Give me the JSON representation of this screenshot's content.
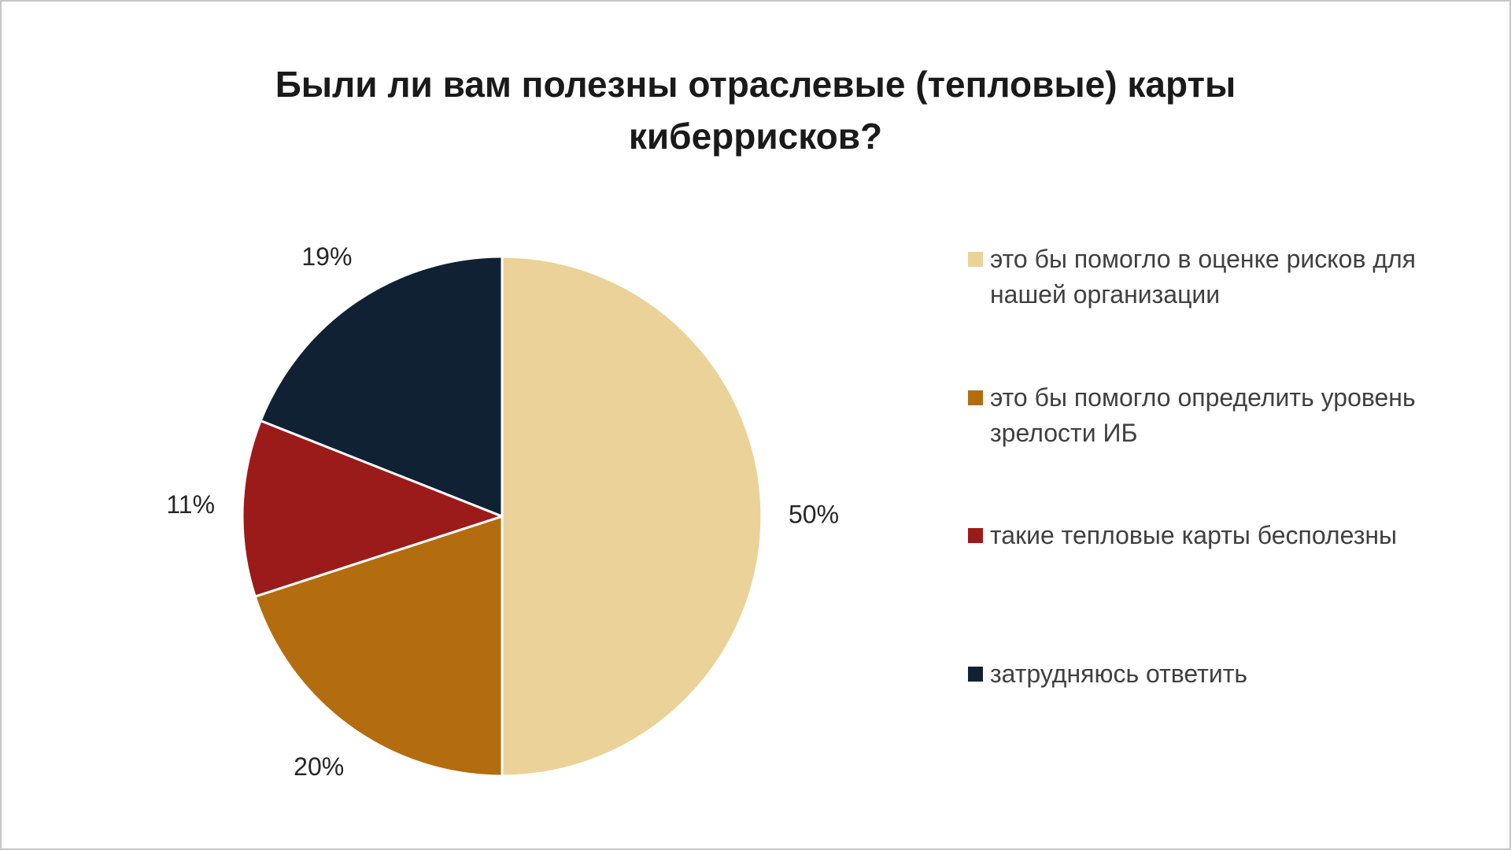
{
  "page": {
    "background": "#ffffff",
    "border_color": "#c6c6c6"
  },
  "chart_data": {
    "type": "pie",
    "title": "Были ли вам полезны отраслевые (тепловые) карты киберрисков?",
    "start_angle_deg": 0,
    "direction": "clockwise",
    "legend_position": "right",
    "grid": false,
    "title_color": "#1a1a1a",
    "label_color": "#262626",
    "legend_text_color": "#404040",
    "slices": [
      {
        "label": "это бы помогло в оценке рисков для нашей организации",
        "value": 50,
        "percent_label": "50%",
        "color": "#ebd299"
      },
      {
        "label": "это бы помогло определить уровень зрелости ИБ",
        "value": 20,
        "percent_label": "20%",
        "color": "#b36d0f"
      },
      {
        "label": "такие тепловые карты бесполезны",
        "value": 11,
        "percent_label": "11%",
        "color": "#9b1b1b"
      },
      {
        "label": "затрудняюсь ответить",
        "value": 19,
        "percent_label": "19%",
        "color": "#102133"
      }
    ]
  }
}
